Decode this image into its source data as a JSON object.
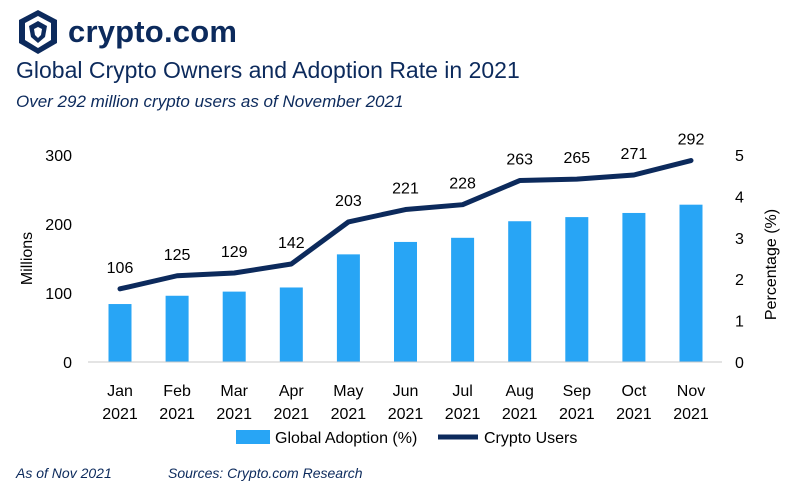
{
  "brand": {
    "name": "crypto.com",
    "logo_icon": "lion-shield-icon",
    "color": "#0c2a5c"
  },
  "header": {
    "title": "Global Crypto Owners and Adoption Rate in 2021",
    "subtitle": "Over 292 million crypto users as of November 2021"
  },
  "footer": {
    "as_of": "As of Nov 2021",
    "sources": "Sources: Crypto.com Research"
  },
  "chart_data": {
    "type": "bar+line",
    "categories": [
      [
        "Jan",
        "2021"
      ],
      [
        "Feb",
        "2021"
      ],
      [
        "Mar",
        "2021"
      ],
      [
        "Apr",
        "2021"
      ],
      [
        "May",
        "2021"
      ],
      [
        "Jun",
        "2021"
      ],
      [
        "Jul",
        "2021"
      ],
      [
        "Aug",
        "2021"
      ],
      [
        "Sep",
        "2021"
      ],
      [
        "Oct",
        "2021"
      ],
      [
        "Nov",
        "2021"
      ]
    ],
    "series": [
      {
        "name": "Global Adoption (%)",
        "type": "bar",
        "axis": "right",
        "color": "#28a5f5",
        "values": [
          1.4,
          1.6,
          1.7,
          1.8,
          2.6,
          2.9,
          3.0,
          3.4,
          3.5,
          3.6,
          3.8
        ]
      },
      {
        "name": "Crypto Users",
        "type": "line",
        "axis": "left",
        "color": "#0c2a5c",
        "values": [
          106,
          125,
          129,
          142,
          203,
          221,
          228,
          263,
          265,
          271,
          292
        ]
      }
    ],
    "y_left": {
      "label": "Millions",
      "range": [
        0,
        300
      ],
      "ticks": [
        0,
        100,
        200,
        300
      ]
    },
    "y_right": {
      "label": "Percentage (%)",
      "range": [
        0,
        5
      ],
      "ticks": [
        0,
        1,
        2,
        3,
        4,
        5
      ]
    },
    "legend": "bottom-center",
    "grid": false
  }
}
